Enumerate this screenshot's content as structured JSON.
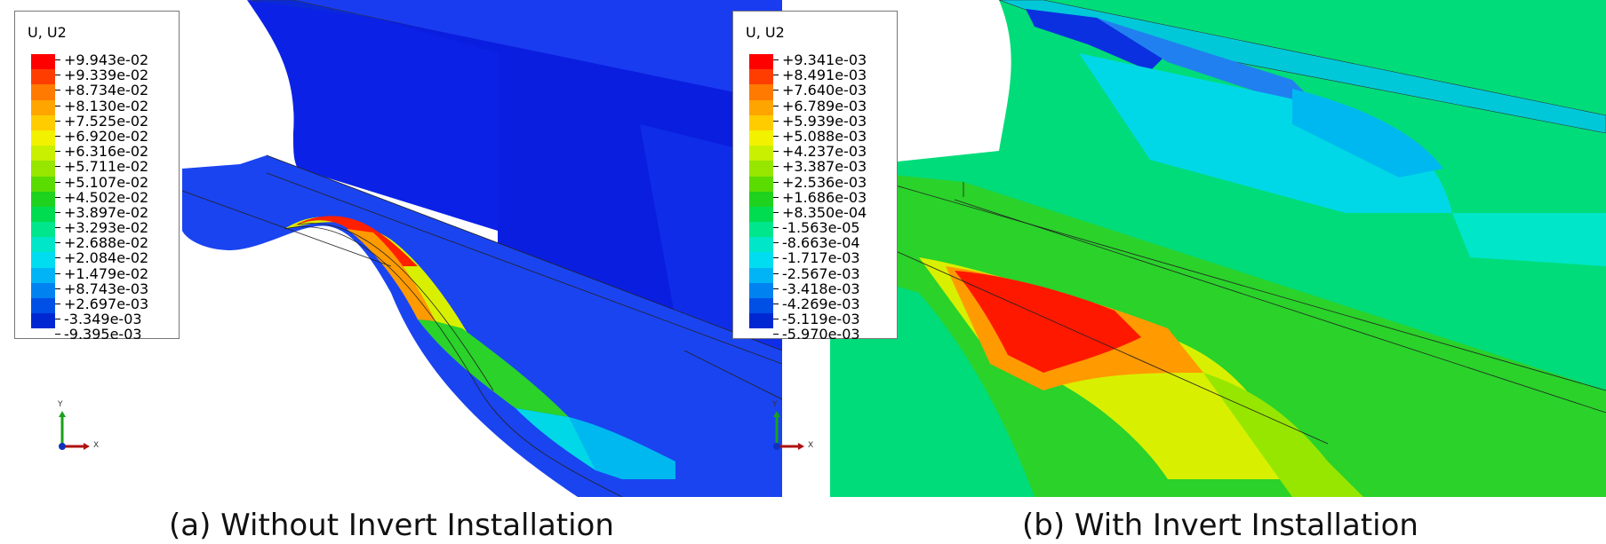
{
  "panels": [
    {
      "caption": "(a) Without Invert Installation",
      "legend": {
        "title": "U, U2",
        "values": [
          "+9.943e-02",
          "+9.339e-02",
          "+8.734e-02",
          "+8.130e-02",
          "+7.525e-02",
          "+6.920e-02",
          "+6.316e-02",
          "+5.711e-02",
          "+5.107e-02",
          "+4.502e-02",
          "+3.897e-02",
          "+3.293e-02",
          "+2.688e-02",
          "+2.084e-02",
          "+1.479e-02",
          "+8.743e-03",
          "+2.697e-03",
          "-3.349e-03",
          "-9.395e-03"
        ]
      },
      "triad": {
        "y": "Y",
        "x": "X"
      }
    },
    {
      "caption": "(b) With Invert Installation",
      "legend": {
        "title": "U, U2",
        "values": [
          "+9.341e-03",
          "+8.491e-03",
          "+7.640e-03",
          "+6.789e-03",
          "+5.939e-03",
          "+5.088e-03",
          "+4.237e-03",
          "+3.387e-03",
          "+2.536e-03",
          "+1.686e-03",
          "+8.350e-04",
          "-1.563e-05",
          "-8.663e-04",
          "-1.717e-03",
          "-2.567e-03",
          "-3.418e-03",
          "-4.269e-03",
          "-5.119e-03",
          "-5.970e-03"
        ]
      },
      "triad": {
        "y": "Y",
        "x": "X"
      }
    }
  ],
  "colormap": [
    "#ff0000",
    "#ff3d00",
    "#ff7a00",
    "#ffa500",
    "#ffcc00",
    "#f2f200",
    "#c8f000",
    "#96e600",
    "#5adc00",
    "#1ed21e",
    "#00dc50",
    "#00e68c",
    "#00e6c8",
    "#00dcf0",
    "#00b4f5",
    "#0082f0",
    "#0050e6",
    "#0028d2"
  ],
  "colors": {
    "background": "#ffffff",
    "legend_border": "#777777",
    "triad_y": "#1aa01a",
    "triad_x": "#b01010",
    "triad_z": "#1030c0"
  }
}
